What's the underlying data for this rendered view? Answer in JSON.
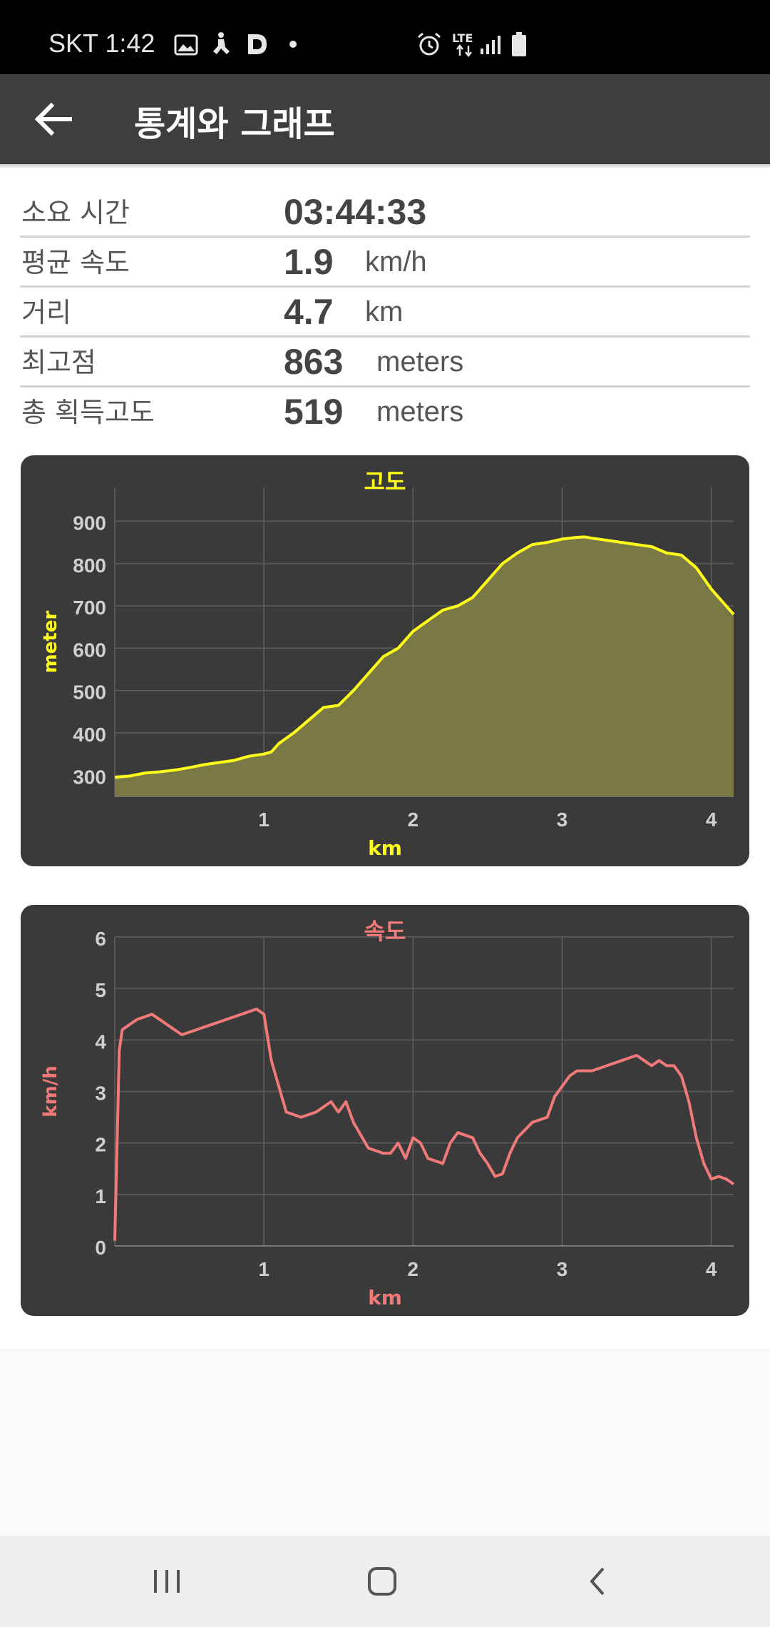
{
  "status_bar": {
    "carrier_time": "SKT 1:42",
    "network": "LTE"
  },
  "app_bar": {
    "back_icon": "arrow-left-icon",
    "title": "통계와 그래프"
  },
  "stats": [
    {
      "label": "소요 시간",
      "value": "03:44:33",
      "unit": ""
    },
    {
      "label": "평균 속도",
      "value": "1.9",
      "unit": "km/h"
    },
    {
      "label": "거리",
      "value": "4.7",
      "unit": "km"
    },
    {
      "label": "최고점",
      "value": "863",
      "unit": "meters"
    },
    {
      "label": "총 획득고도",
      "value": "519",
      "unit": "meters"
    }
  ],
  "colors": {
    "panel": "#3a3a3a",
    "altitude_line": "#ffff1a",
    "altitude_fill": "#7a7845",
    "speed_line": "#f07a78",
    "grid": "#5e5e5e",
    "tick_text": "#cfcfcf"
  },
  "chart_data": [
    {
      "type": "area",
      "title": "고도",
      "xlabel": "km",
      "ylabel": "meter",
      "xlim": [
        0,
        4.15
      ],
      "ylim": [
        250,
        980
      ],
      "xticks": [
        "1",
        "2",
        "3",
        "4"
      ],
      "xtick_values": [
        1,
        2,
        3,
        4
      ],
      "yticks": [
        "300",
        "400",
        "500",
        "600",
        "700",
        "800",
        "900"
      ],
      "ytick_values": [
        300,
        400,
        500,
        600,
        700,
        800,
        900
      ],
      "grid": true,
      "series": [
        {
          "x": [
            0,
            0.1,
            0.2,
            0.3,
            0.4,
            0.5,
            0.6,
            0.7,
            0.8,
            0.9,
            1.0,
            1.05,
            1.1,
            1.2,
            1.3,
            1.4,
            1.5,
            1.6,
            1.7,
            1.8,
            1.9,
            2.0,
            2.1,
            2.2,
            2.3,
            2.4,
            2.5,
            2.6,
            2.7,
            2.8,
            2.9,
            3.0,
            3.1,
            3.15,
            3.2,
            3.3,
            3.4,
            3.5,
            3.6,
            3.7,
            3.8,
            3.9,
            4.0,
            4.1,
            4.15
          ],
          "y": [
            295,
            298,
            305,
            308,
            312,
            318,
            325,
            330,
            335,
            345,
            350,
            355,
            375,
            400,
            430,
            460,
            465,
            500,
            540,
            580,
            600,
            640,
            665,
            690,
            700,
            720,
            760,
            800,
            825,
            845,
            850,
            858,
            862,
            863,
            860,
            855,
            850,
            845,
            840,
            825,
            820,
            790,
            740,
            700,
            680
          ]
        }
      ]
    },
    {
      "type": "line",
      "title": "속도",
      "xlabel": "km",
      "ylabel": "km/h",
      "xlim": [
        0,
        4.15
      ],
      "ylim": [
        0,
        6
      ],
      "xticks": [
        "1",
        "2",
        "3",
        "4"
      ],
      "xtick_values": [
        1,
        2,
        3,
        4
      ],
      "yticks": [
        "0",
        "1",
        "2",
        "3",
        "4",
        "5",
        "6"
      ],
      "ytick_values": [
        0,
        1,
        2,
        3,
        4,
        5,
        6
      ],
      "grid": true,
      "series": [
        {
          "x": [
            0,
            0.03,
            0.05,
            0.15,
            0.25,
            0.35,
            0.45,
            0.55,
            0.65,
            0.75,
            0.85,
            0.95,
            1.0,
            1.05,
            1.15,
            1.25,
            1.35,
            1.45,
            1.5,
            1.55,
            1.6,
            1.7,
            1.8,
            1.85,
            1.9,
            1.95,
            2.0,
            2.05,
            2.1,
            2.2,
            2.25,
            2.3,
            2.4,
            2.45,
            2.5,
            2.55,
            2.6,
            2.65,
            2.7,
            2.8,
            2.9,
            2.95,
            3.0,
            3.05,
            3.1,
            3.2,
            3.3,
            3.4,
            3.5,
            3.55,
            3.6,
            3.65,
            3.7,
            3.75,
            3.8,
            3.85,
            3.9,
            3.95,
            4.0,
            4.05,
            4.1,
            4.15
          ],
          "y": [
            0.1,
            3.8,
            4.2,
            4.4,
            4.5,
            4.3,
            4.1,
            4.2,
            4.3,
            4.4,
            4.5,
            4.6,
            4.5,
            3.6,
            2.6,
            2.5,
            2.6,
            2.8,
            2.6,
            2.8,
            2.4,
            1.9,
            1.8,
            1.8,
            2.0,
            1.7,
            2.1,
            2.0,
            1.7,
            1.6,
            2.0,
            2.2,
            2.1,
            1.8,
            1.6,
            1.35,
            1.4,
            1.8,
            2.1,
            2.4,
            2.5,
            2.9,
            3.1,
            3.3,
            3.4,
            3.4,
            3.5,
            3.6,
            3.7,
            3.6,
            3.5,
            3.6,
            3.5,
            3.5,
            3.3,
            2.8,
            2.1,
            1.6,
            1.3,
            1.35,
            1.3,
            1.2
          ]
        }
      ]
    }
  ]
}
